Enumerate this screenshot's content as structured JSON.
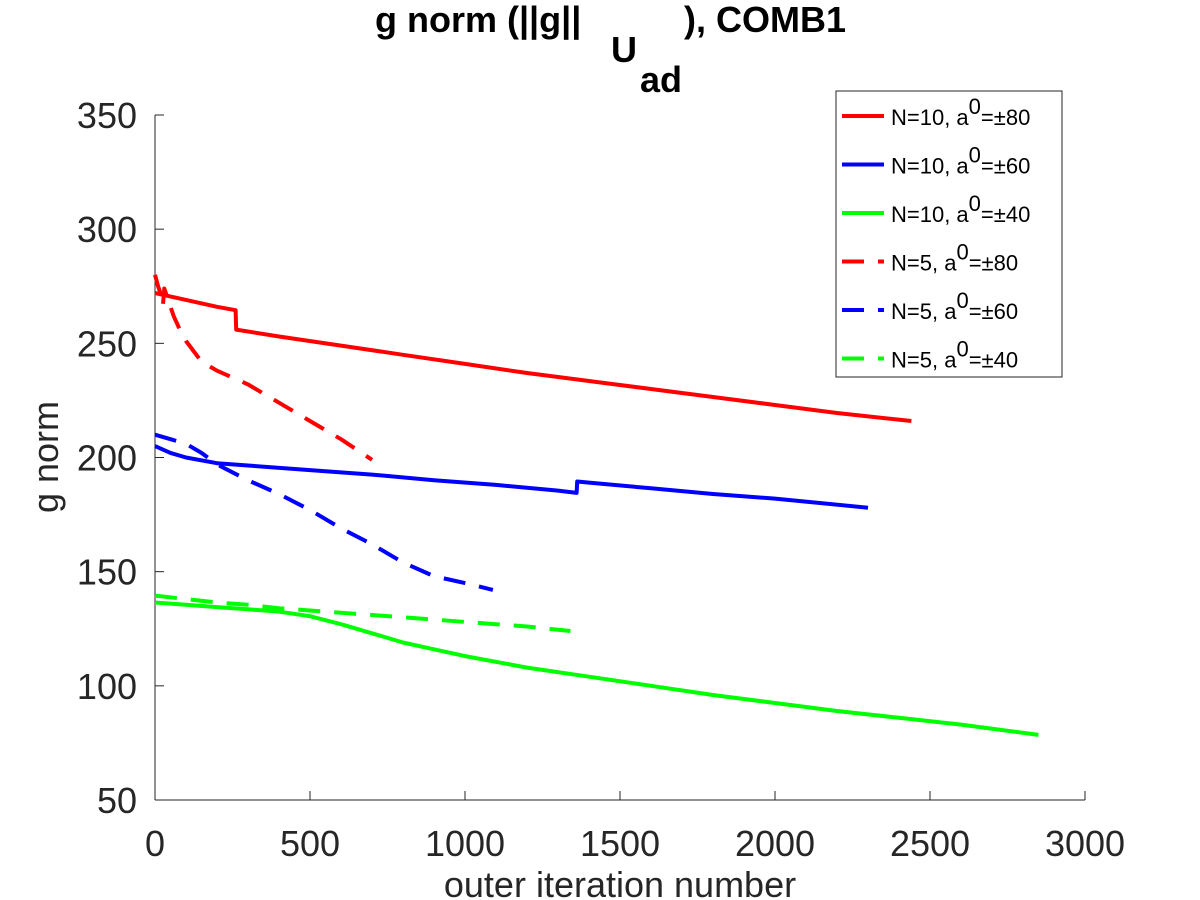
{
  "chart_data": {
    "type": "line",
    "title": {
      "prefix": "g norm (||g||",
      "sub1": "U",
      "sub2": "ad",
      "suffix": "), COMB1"
    },
    "xlabel": "outer iteration number",
    "ylabel": "g norm",
    "xlim": [
      0,
      3000
    ],
    "ylim": [
      50,
      350
    ],
    "xticks": [
      0,
      500,
      1000,
      1500,
      2000,
      2500,
      3000
    ],
    "yticks": [
      50,
      100,
      150,
      200,
      250,
      300,
      350
    ],
    "grid": false,
    "legend_position": "top-right",
    "series": [
      {
        "name": "N=10, a0=±80",
        "label_main": "N=10, a",
        "label_sup": "0",
        "label_tail": "=±80",
        "color": "#ff0000",
        "style": "solid",
        "x": [
          0,
          100,
          200,
          260,
          262,
          400,
          600,
          800,
          1000,
          1200,
          1400,
          1600,
          1800,
          2000,
          2200,
          2440
        ],
        "y": [
          272,
          269,
          266,
          264.5,
          256,
          253,
          249,
          245,
          241,
          237,
          233.5,
          230,
          226.5,
          223,
          219.5,
          216
        ]
      },
      {
        "name": "N=10, a0=±60",
        "label_main": "N=10, a",
        "label_sup": "0",
        "label_tail": "=±60",
        "color": "#0000ff",
        "style": "solid",
        "x": [
          0,
          50,
          100,
          200,
          300,
          500,
          700,
          900,
          1100,
          1300,
          1360,
          1362,
          1400,
          1600,
          1800,
          2000,
          2300
        ],
        "y": [
          205,
          202,
          200,
          197.5,
          196.5,
          194.5,
          192.5,
          190,
          188,
          185.5,
          184.5,
          189.5,
          189,
          186.5,
          184,
          182,
          178
        ]
      },
      {
        "name": "N=10, a0=±40",
        "label_main": "N=10, a",
        "label_sup": "0",
        "label_tail": "=±40",
        "color": "#00ff00",
        "style": "solid",
        "x": [
          0,
          100,
          200,
          300,
          400,
          500,
          600,
          700,
          800,
          900,
          1000,
          1200,
          1400,
          1600,
          1800,
          2000,
          2200,
          2400,
          2600,
          2850
        ],
        "y": [
          136.5,
          135.5,
          134.5,
          133.5,
          132.5,
          130.5,
          127,
          123,
          119,
          116,
          113,
          108,
          104,
          100,
          96,
          92.5,
          89,
          86,
          83,
          78.5
        ]
      },
      {
        "name": "N=5, a0=±80",
        "label_main": "N=5, a",
        "label_sup": "0",
        "label_tail": "=±80",
        "color": "#ff0000",
        "style": "dashed",
        "x": [
          0,
          10,
          20,
          25,
          30,
          40,
          60,
          80,
          100,
          150,
          200,
          300,
          400,
          500,
          600,
          700
        ],
        "y": [
          280,
          275,
          271,
          266,
          274,
          270,
          262,
          256,
          251,
          242,
          238,
          232,
          224,
          216,
          208,
          199
        ]
      },
      {
        "name": "N=5, a0=±60",
        "label_main": "N=5, a",
        "label_sup": "0",
        "label_tail": "=±60",
        "color": "#0000ff",
        "style": "dashed",
        "x": [
          0,
          50,
          100,
          150,
          200,
          300,
          400,
          500,
          600,
          700,
          800,
          900,
          1000,
          1090
        ],
        "y": [
          210,
          208,
          206,
          202,
          197,
          190,
          184,
          177,
          169,
          162,
          154,
          148,
          145,
          142
        ]
      },
      {
        "name": "N=5, a0=±40",
        "label_main": "N=5, a",
        "label_sup": "0",
        "label_tail": "=±40",
        "color": "#00ff00",
        "style": "dashed",
        "x": [
          0,
          100,
          200,
          300,
          400,
          500,
          600,
          700,
          800,
          900,
          1000,
          1100,
          1200,
          1340
        ],
        "y": [
          139.5,
          138,
          136.5,
          135.5,
          134,
          133,
          132,
          131,
          130,
          129,
          128,
          127,
          126,
          124
        ]
      }
    ]
  }
}
